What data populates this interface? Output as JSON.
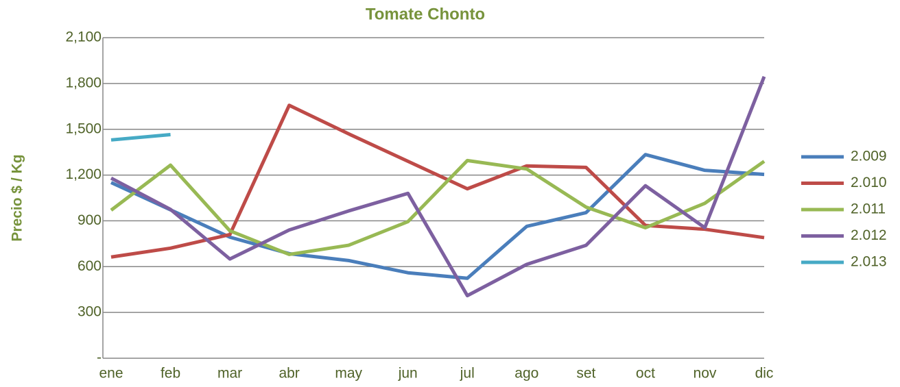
{
  "chart_data": {
    "type": "line",
    "title": "Tomate Chonto",
    "y_label": "Precio $ / Kg",
    "categories": [
      "ene",
      "feb",
      "mar",
      "abr",
      "may",
      "jun",
      "jul",
      "ago",
      "set",
      "oct",
      "nov",
      "dic"
    ],
    "ylim": [
      0,
      2100
    ],
    "yticks": [
      {
        "value": 0,
        "label": "-"
      },
      300,
      600,
      900,
      {
        "value": 1200,
        "label": "1,200"
      },
      {
        "value": 1500,
        "label": "1,500"
      },
      {
        "value": 1800,
        "label": "1,800"
      },
      {
        "value": 2100,
        "label": "2,100"
      }
    ],
    "grid": true,
    "legend": "right",
    "series": [
      {
        "name": "2.009",
        "color": "#4a7ebb",
        "values": [
          1151,
          972,
          793,
          685,
          640,
          560,
          524,
          864,
          954,
          1334,
          1231,
          1204
        ]
      },
      {
        "name": "2.010",
        "color": "#be4b48",
        "values": [
          663,
          721,
          810,
          1657,
          1470,
          1290,
          1110,
          1260,
          1250,
          870,
          845,
          790
        ]
      },
      {
        "name": "2.011",
        "color": "#98b954",
        "values": [
          970,
          1265,
          835,
          680,
          740,
          895,
          1295,
          1240,
          990,
          855,
          1015,
          1290
        ]
      },
      {
        "name": "2.012",
        "color": "#7d60a0",
        "values": [
          1180,
          975,
          650,
          840,
          965,
          1080,
          410,
          615,
          740,
          1130,
          855,
          1845
        ]
      },
      {
        "name": "2.013",
        "color": "#46aac5",
        "values": [
          1430,
          1465,
          null,
          null,
          null,
          null,
          null,
          null,
          null,
          null,
          null,
          null
        ]
      }
    ]
  }
}
